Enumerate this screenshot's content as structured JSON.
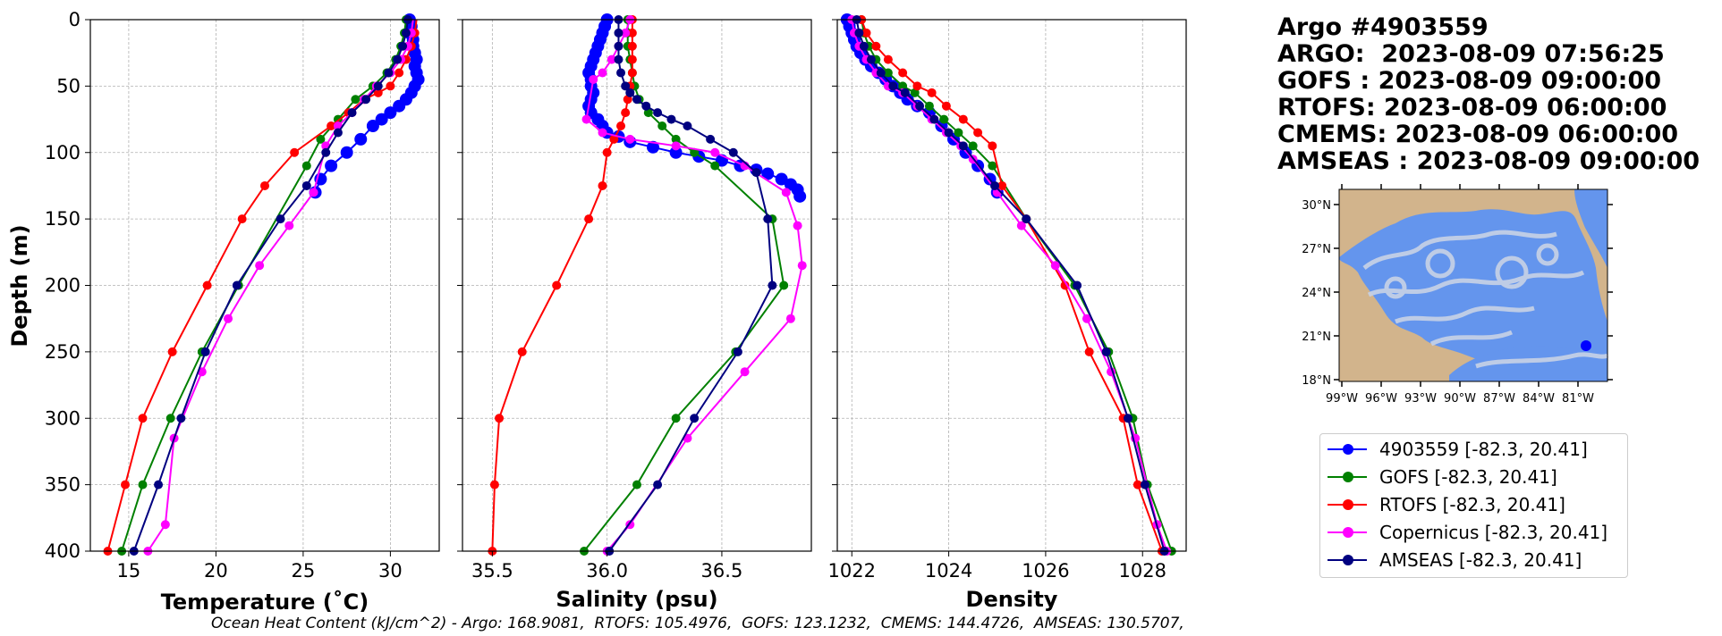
{
  "title_lines": [
    "Argo #4903559",
    "ARGO:  2023-08-09 07:56:25",
    "GOFS : 2023-08-09 09:00:00",
    "RTOFS: 2023-08-09 06:00:00",
    "CMEMS: 2023-08-09 06:00:00",
    "AMSEAS : 2023-08-09 09:00:00"
  ],
  "footer": "Ocean Heat Content (kJ/cm^2) - Argo: 168.9081,  RTOFS: 105.4976,  GOFS: 123.1232,  CMEMS: 144.4726,  AMSEAS: 130.5707,",
  "legend": [
    {
      "label": "4903559 [-82.3, 20.41]",
      "color": "#0000ff"
    },
    {
      "label": "GOFS [-82.3, 20.41]",
      "color": "#008000"
    },
    {
      "label": "RTOFS [-82.3, 20.41]",
      "color": "#ff0000"
    },
    {
      "label": "Copernicus [-82.3, 20.41]",
      "color": "#ff00ff"
    },
    {
      "label": "AMSEAS [-82.3, 20.41]",
      "color": "#000080"
    }
  ],
  "map": {
    "lat_ticks": [
      "30°N",
      "27°N",
      "24°N",
      "21°N",
      "18°N"
    ],
    "lon_ticks": [
      "99°W",
      "96°W",
      "93°W",
      "90°W",
      "87°W",
      "84°W",
      "81°W"
    ],
    "land_color": "#d2b48c",
    "water_color": "#6495ed",
    "float_marker_color": "#0000ff"
  },
  "chart_data": [
    {
      "type": "line",
      "xlabel": "Temperature (˚C)",
      "ylabel": "Depth (m)",
      "xlim": [
        12.8,
        32.8
      ],
      "ylim": [
        400,
        0
      ],
      "xticks": [
        15,
        20,
        25,
        30
      ],
      "yticks": [
        0,
        50,
        100,
        150,
        200,
        250,
        300,
        350,
        400
      ],
      "grid": true,
      "series": [
        {
          "name": "4903559",
          "color": "#0000ff",
          "marker_size": 7,
          "x": [
            31.1,
            31.2,
            31.1,
            31.3,
            31.3,
            31.4,
            31.5,
            31.4,
            31.5,
            31.6,
            31.4,
            31.2,
            30.9,
            30.5,
            30.0,
            29.5,
            29.0,
            28.3,
            27.5,
            26.6,
            26.0,
            25.7
          ],
          "y": [
            0,
            5,
            10,
            15,
            20,
            25,
            30,
            35,
            40,
            45,
            50,
            55,
            60,
            65,
            70,
            75,
            80,
            90,
            100,
            110,
            120,
            130
          ]
        },
        {
          "name": "GOFS",
          "color": "#008000",
          "marker_size": 5,
          "x": [
            30.9,
            30.8,
            30.6,
            30.3,
            29.8,
            29.0,
            28.0,
            27.0,
            26.0,
            25.2,
            21.3,
            19.2,
            17.4,
            15.8,
            14.6
          ],
          "y": [
            0,
            10,
            20,
            30,
            40,
            50,
            60,
            75,
            90,
            110,
            200,
            250,
            300,
            350,
            400
          ]
        },
        {
          "name": "RTOFS",
          "color": "#ff0000",
          "marker_size": 5,
          "x": [
            31.5,
            31.4,
            31.2,
            30.9,
            30.5,
            30.0,
            29.3,
            28.5,
            27.6,
            26.6,
            24.5,
            22.8,
            21.5,
            19.5,
            17.5,
            15.8,
            14.8,
            13.8
          ],
          "y": [
            0,
            10,
            20,
            30,
            40,
            50,
            55,
            60,
            70,
            80,
            100,
            125,
            150,
            200,
            250,
            300,
            350,
            400
          ],
          "first_marker": 1
        },
        {
          "name": "Copernicus",
          "color": "#ff00ff",
          "marker_size": 5,
          "x": [
            31.3,
            31.2,
            31.0,
            30.6,
            30.0,
            29.2,
            28.5,
            27.8,
            27.0,
            26.3,
            25.6,
            24.2,
            22.5,
            20.7,
            19.2,
            17.6,
            17.1,
            16.1
          ],
          "y": [
            0,
            10,
            20,
            30,
            40,
            50,
            60,
            70,
            80,
            95,
            130,
            155,
            185,
            225,
            265,
            315,
            380,
            400
          ],
          "first_marker": 1
        },
        {
          "name": "AMSEAS",
          "color": "#000080",
          "marker_size": 5,
          "x": [
            31.0,
            30.9,
            30.7,
            30.4,
            29.9,
            29.3,
            28.6,
            27.8,
            27.0,
            26.3,
            25.2,
            23.7,
            21.2,
            19.4,
            18.0,
            16.7,
            15.3
          ],
          "y": [
            0,
            10,
            20,
            30,
            40,
            50,
            60,
            70,
            85,
            100,
            125,
            150,
            200,
            250,
            300,
            350,
            400
          ]
        }
      ]
    },
    {
      "type": "line",
      "xlabel": "Salinity (psu)",
      "ylabel": "",
      "xlim": [
        35.37,
        36.89
      ],
      "ylim": [
        400,
        0
      ],
      "xticks": [
        35.5,
        36.0,
        36.5
      ],
      "xtick_labels": [
        "35.5",
        "36.0",
        "36.5"
      ],
      "yticks": [
        0,
        50,
        100,
        150,
        200,
        250,
        300,
        350,
        400
      ],
      "grid": true,
      "series": [
        {
          "name": "4903559",
          "color": "#0000ff",
          "marker_size": 7,
          "x": [
            36.0,
            35.99,
            35.98,
            35.97,
            35.96,
            35.95,
            35.94,
            35.93,
            35.92,
            35.93,
            35.93,
            35.94,
            35.93,
            35.92,
            35.93,
            35.96,
            35.98,
            36.0,
            36.05,
            36.1,
            36.2,
            36.3,
            36.4,
            36.5,
            36.58,
            36.65,
            36.7,
            36.76,
            36.8,
            36.83,
            36.84
          ],
          "y": [
            0,
            5,
            10,
            15,
            20,
            25,
            30,
            35,
            40,
            45,
            50,
            55,
            60,
            65,
            70,
            75,
            80,
            85,
            88,
            92,
            96,
            100,
            103,
            106,
            110,
            113,
            116,
            120,
            124,
            128,
            133
          ]
        },
        {
          "name": "GOFS",
          "color": "#008000",
          "marker_size": 5,
          "x": [
            36.09,
            36.09,
            36.09,
            36.1,
            36.11,
            36.12,
            36.14,
            36.18,
            36.24,
            36.3,
            36.38,
            36.47,
            36.72,
            36.77,
            36.56,
            36.3,
            36.13,
            35.9
          ],
          "y": [
            0,
            10,
            20,
            30,
            40,
            50,
            60,
            70,
            80,
            90,
            100,
            110,
            150,
            200,
            250,
            300,
            350,
            400
          ]
        },
        {
          "name": "RTOFS",
          "color": "#ff0000",
          "marker_size": 5,
          "x": [
            36.11,
            36.11,
            36.11,
            36.11,
            36.11,
            36.1,
            36.09,
            36.08,
            36.06,
            36.03,
            36.0,
            35.98,
            35.92,
            35.78,
            35.63,
            35.53,
            35.51,
            35.5
          ],
          "y": [
            0,
            10,
            20,
            30,
            40,
            50,
            60,
            70,
            80,
            90,
            100,
            125,
            150,
            200,
            250,
            300,
            350,
            400
          ]
        },
        {
          "name": "Copernicus",
          "color": "#ff00ff",
          "marker_size": 5,
          "x": [
            36.1,
            36.08,
            36.05,
            36.02,
            35.98,
            35.94,
            35.91,
            35.98,
            36.1,
            36.3,
            36.47,
            36.6,
            36.78,
            36.83,
            36.85,
            36.8,
            36.6,
            36.35,
            36.1,
            36.0
          ],
          "y": [
            0,
            10,
            20,
            30,
            40,
            45,
            75,
            85,
            90,
            95,
            100,
            110,
            130,
            155,
            185,
            225,
            265,
            315,
            380,
            400
          ]
        },
        {
          "name": "AMSEAS",
          "color": "#000080",
          "marker_size": 5,
          "x": [
            36.05,
            36.05,
            36.05,
            36.05,
            36.06,
            36.08,
            36.1,
            36.13,
            36.17,
            36.22,
            36.28,
            36.35,
            36.45,
            36.55,
            36.65,
            36.7,
            36.72,
            36.57,
            36.38,
            36.22,
            36.01
          ],
          "y": [
            0,
            10,
            20,
            30,
            40,
            50,
            55,
            60,
            65,
            70,
            75,
            80,
            90,
            100,
            115,
            150,
            200,
            250,
            300,
            350,
            400
          ]
        }
      ]
    },
    {
      "type": "line",
      "xlabel": "Density",
      "ylabel": "",
      "xlim": [
        1021.7,
        1028.9
      ],
      "ylim": [
        400,
        0
      ],
      "xticks": [
        1022,
        1024,
        1026,
        1028
      ],
      "yticks": [
        0,
        50,
        100,
        150,
        200,
        250,
        300,
        350,
        400
      ],
      "grid": true,
      "series": [
        {
          "name": "4903559",
          "color": "#0000ff",
          "marker_size": 7,
          "x": [
            1021.9,
            1021.95,
            1022.0,
            1022.05,
            1022.1,
            1022.18,
            1022.28,
            1022.4,
            1022.55,
            1022.7,
            1022.85,
            1023.0,
            1023.15,
            1023.35,
            1023.6,
            1023.85,
            1024.1,
            1024.35,
            1024.6,
            1024.85,
            1025.0
          ],
          "y": [
            0,
            5,
            10,
            15,
            20,
            25,
            30,
            35,
            40,
            45,
            50,
            55,
            60,
            65,
            70,
            80,
            90,
            100,
            110,
            120,
            130
          ]
        },
        {
          "name": "GOFS",
          "color": "#008000",
          "marker_size": 5,
          "x": [
            1022.2,
            1022.25,
            1022.35,
            1022.5,
            1022.75,
            1023.05,
            1023.3,
            1023.6,
            1023.9,
            1024.2,
            1024.5,
            1024.9,
            1025.6,
            1026.6,
            1027.3,
            1027.8,
            1028.1,
            1028.6
          ],
          "y": [
            0,
            10,
            20,
            30,
            40,
            50,
            55,
            65,
            75,
            85,
            95,
            110,
            150,
            200,
            250,
            300,
            350,
            400
          ]
        },
        {
          "name": "RTOFS",
          "color": "#ff0000",
          "marker_size": 5,
          "x": [
            1022.2,
            1022.3,
            1022.5,
            1022.75,
            1023.05,
            1023.35,
            1023.65,
            1023.95,
            1024.3,
            1024.6,
            1024.9,
            1025.1,
            1025.6,
            1026.4,
            1026.9,
            1027.6,
            1027.9,
            1028.4
          ],
          "y": [
            0,
            10,
            20,
            30,
            40,
            50,
            55,
            65,
            75,
            85,
            95,
            125,
            150,
            200,
            250,
            300,
            350,
            400
          ]
        },
        {
          "name": "Copernicus",
          "color": "#ff00ff",
          "marker_size": 5,
          "x": [
            1022.0,
            1022.05,
            1022.15,
            1022.3,
            1022.5,
            1022.75,
            1023.05,
            1023.35,
            1023.65,
            1023.95,
            1024.25,
            1024.5,
            1025.0,
            1025.5,
            1026.2,
            1026.85,
            1027.35,
            1027.85,
            1028.3,
            1028.5
          ],
          "y": [
            0,
            10,
            20,
            30,
            40,
            50,
            55,
            65,
            75,
            85,
            95,
            105,
            130,
            155,
            185,
            225,
            265,
            315,
            380,
            400
          ]
        },
        {
          "name": "AMSEAS",
          "color": "#000080",
          "marker_size": 5,
          "x": [
            1022.1,
            1022.15,
            1022.25,
            1022.4,
            1022.6,
            1022.85,
            1023.1,
            1023.4,
            1023.7,
            1024.0,
            1024.3,
            1024.95,
            1025.6,
            1026.65,
            1027.25,
            1027.7,
            1028.05,
            1028.45
          ],
          "y": [
            0,
            10,
            20,
            30,
            40,
            50,
            55,
            65,
            75,
            85,
            95,
            125,
            150,
            200,
            250,
            300,
            350,
            400
          ]
        }
      ]
    }
  ]
}
